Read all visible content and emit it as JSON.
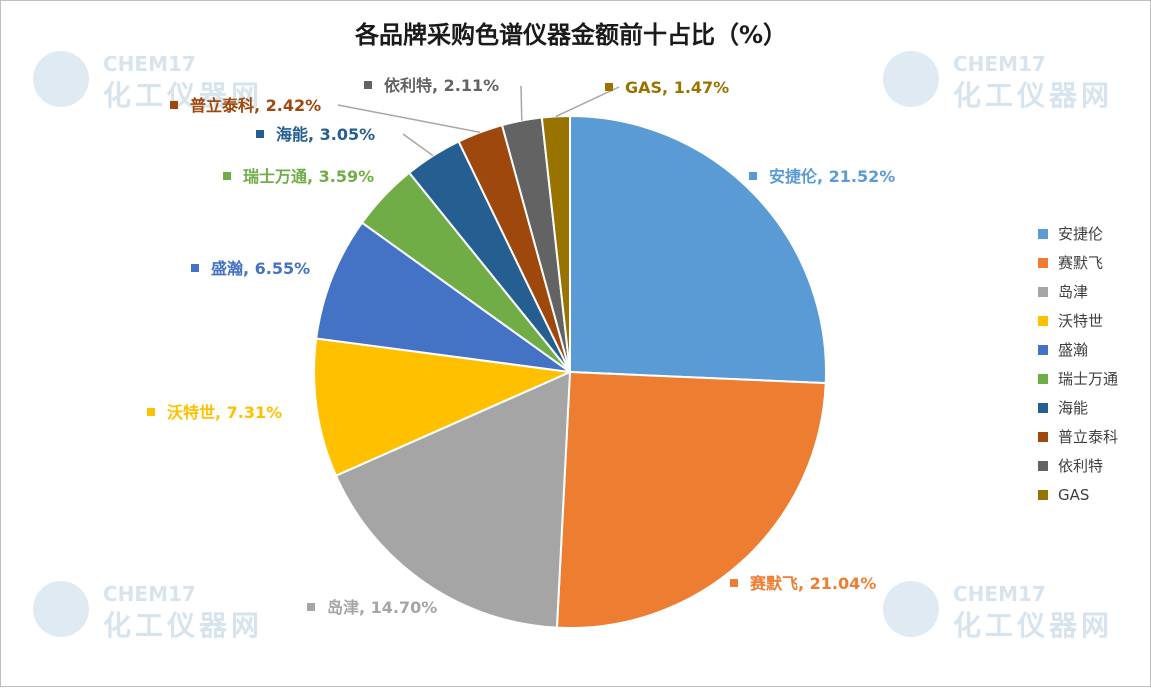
{
  "watermark": {
    "brand": "CHEM17",
    "name": "化工仪器网"
  },
  "chart_data": {
    "type": "pie",
    "title": "各品牌采购色谱仪器金额前十占比（%）",
    "unit": "%",
    "categories": [
      "安捷伦",
      "赛默飞",
      "岛津",
      "沃特世",
      "盛瀚",
      "瑞士万通",
      "海能",
      "普立泰科",
      "依利特",
      "GAS"
    ],
    "values": [
      21.52,
      21.04,
      14.7,
      7.31,
      6.55,
      3.59,
      3.05,
      2.42,
      2.11,
      1.47
    ],
    "value_labels": [
      "21.52%",
      "21.04%",
      "14.70%",
      "7.31%",
      "6.55%",
      "3.59%",
      "3.05%",
      "2.42%",
      "2.11%",
      "1.47%"
    ],
    "colors": [
      "#5b9bd5",
      "#ed7d31",
      "#a5a5a5",
      "#ffc000",
      "#4472c4",
      "#70ad47",
      "#255e91",
      "#9e480e",
      "#636363",
      "#997300"
    ],
    "label_colors": [
      "#5b9bd5",
      "#ed7d31",
      "#a5a5a5",
      "#ffc000",
      "#4472c4",
      "#70ad47",
      "#255e91",
      "#9e480e",
      "#636363",
      "#997300"
    ],
    "start_angle": "12 o'clock",
    "direction": "clockwise",
    "legend_position": "right",
    "data_labels": "outside with leader lines"
  }
}
